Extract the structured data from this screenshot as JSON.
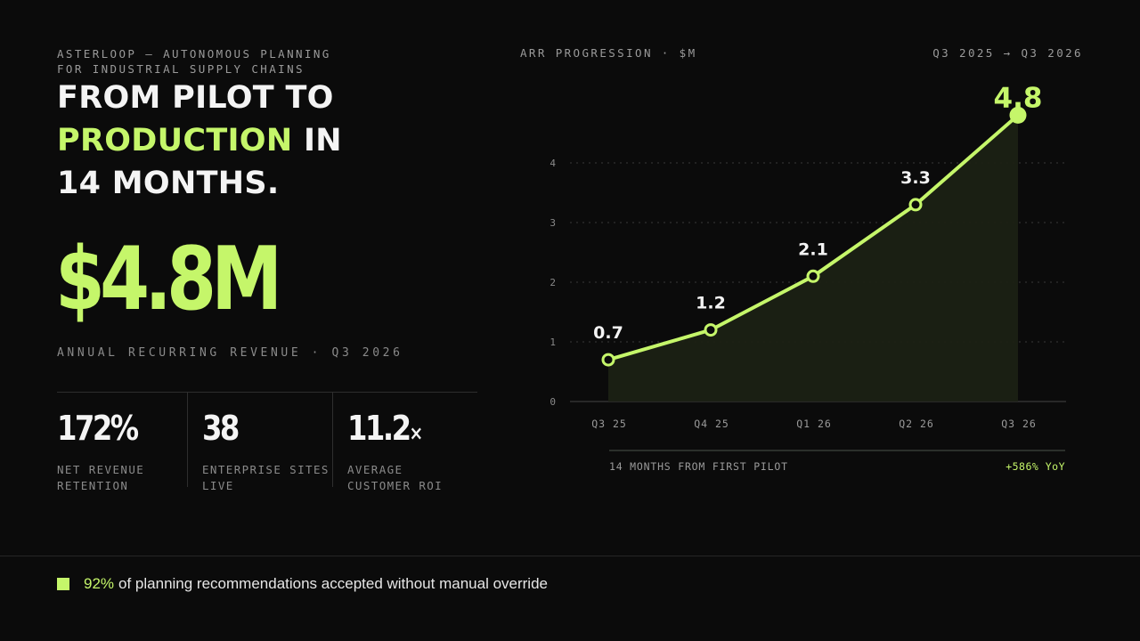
{
  "eyebrow": {
    "line1": "ASTERLOOP — AUTONOMOUS PLANNING",
    "line2": "FOR INDUSTRIAL SUPPLY CHAINS"
  },
  "headline": {
    "part1": "FROM PILOT TO",
    "highlight": "PRODUCTION",
    "part2": "IN",
    "part3": "14 MONTHS."
  },
  "hero": {
    "value": "$4.8M",
    "label": "ANNUAL RECURRING REVENUE · Q3 2026"
  },
  "stats": [
    {
      "value": "172%",
      "suffix": "",
      "label": "NET REVENUE\nRETENTION"
    },
    {
      "value": "38",
      "suffix": "",
      "label": "ENTERPRISE SITES\nLIVE"
    },
    {
      "value": "11.2",
      "suffix": "×",
      "label": "AVERAGE\nCUSTOMER ROI"
    }
  ],
  "chart_header": {
    "title": "ARR PROGRESSION · $M",
    "range": "Q3 2025 → Q3 2026"
  },
  "chart_data": {
    "type": "line",
    "title": "ARR PROGRESSION · $M",
    "categories": [
      "Q3 25",
      "Q4 25",
      "Q1 26",
      "Q2 26",
      "Q3 26"
    ],
    "x": [
      0,
      3,
      6,
      9,
      12
    ],
    "series": [
      {
        "values": [
          0.7,
          1.2,
          2.1,
          3.3,
          4.8
        ]
      }
    ],
    "data_labels": [
      "0.7",
      "1.2",
      "2.1",
      "3.3",
      "4.8"
    ],
    "y_ticks": [
      0,
      1,
      2,
      3,
      4
    ],
    "ylim": [
      0,
      4
    ],
    "xlim": [
      0,
      12
    ],
    "grid": true,
    "area_fill": true,
    "colors": {
      "line": "#c5f66a",
      "fill": "#1b2114",
      "grid": "#3a3a3a"
    }
  },
  "chart_footer": {
    "left": "14 MONTHS FROM FIRST PILOT",
    "right": "+586% YoY"
  },
  "footer": {
    "highlight": "92%",
    "text": "of planning recommendations accepted without manual override"
  },
  "colors": {
    "accent": "#c5f66a",
    "background": "#0b0b0b",
    "text": "#f4f4f4",
    "muted": "#8a8a8a"
  }
}
